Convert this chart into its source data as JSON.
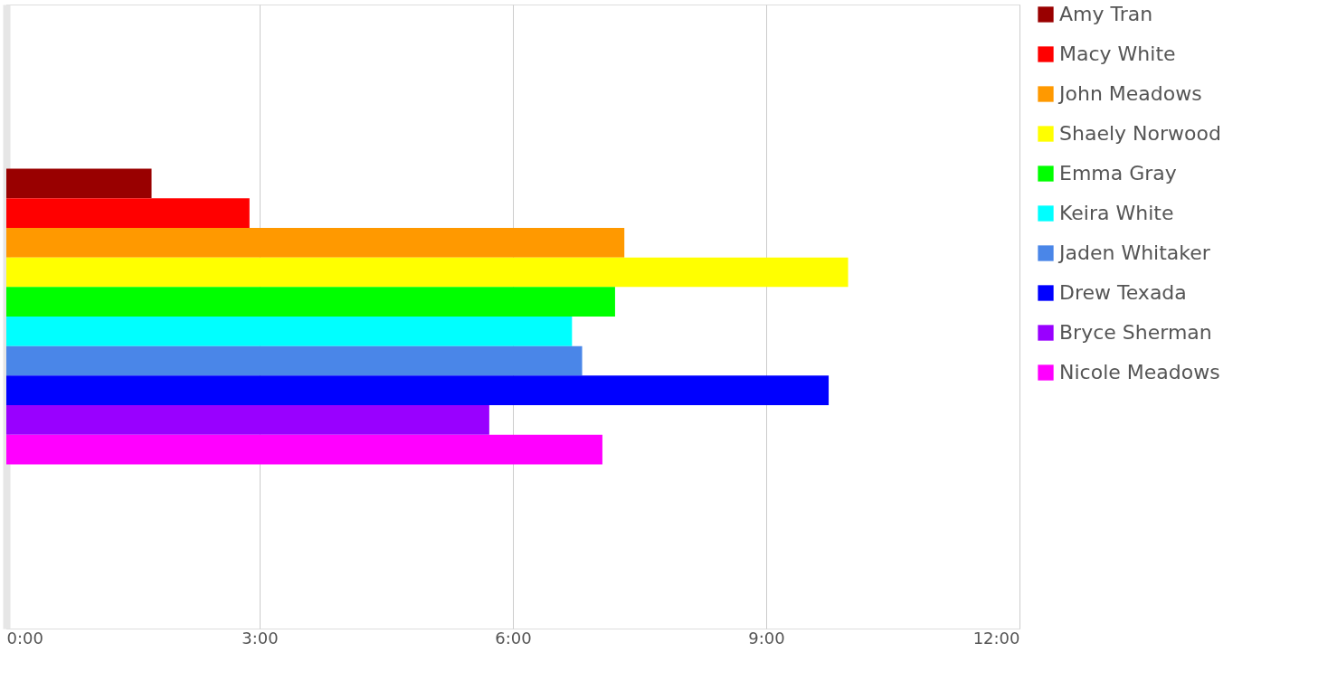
{
  "chart_data": {
    "type": "bar",
    "orientation": "horizontal",
    "categories": [
      null
    ],
    "series": [
      {
        "name": "Amy Tran",
        "color": "#990000",
        "values": [
          1.72
        ]
      },
      {
        "name": "Macy White",
        "color": "#ff0000",
        "values": [
          2.88
        ]
      },
      {
        "name": "John Meadows",
        "color": "#ff9900",
        "values": [
          7.32
        ]
      },
      {
        "name": "Shaely Norwood",
        "color": "#ffff00",
        "values": [
          9.97
        ]
      },
      {
        "name": "Emma Gray",
        "color": "#00ff00",
        "values": [
          7.21
        ]
      },
      {
        "name": "Keira White",
        "color": "#00ffff",
        "values": [
          6.7
        ]
      },
      {
        "name": "Jaden Whitaker",
        "color": "#4a86e8",
        "values": [
          6.82
        ]
      },
      {
        "name": "Drew Texada",
        "color": "#0000ff",
        "values": [
          9.74
        ]
      },
      {
        "name": "Bryce Sherman",
        "color": "#9900ff",
        "values": [
          5.72
        ]
      },
      {
        "name": "Nicole Meadows",
        "color": "#ff00ff",
        "values": [
          7.06
        ]
      }
    ],
    "xlim": [
      0,
      12
    ],
    "xticks": [
      {
        "value": 0,
        "label": "0:00"
      },
      {
        "value": 3,
        "label": "3:00"
      },
      {
        "value": 6,
        "label": "6:00"
      },
      {
        "value": 9,
        "label": "9:00"
      },
      {
        "value": 12,
        "label": "12:00"
      }
    ],
    "grid": "x",
    "legend": "top right"
  }
}
